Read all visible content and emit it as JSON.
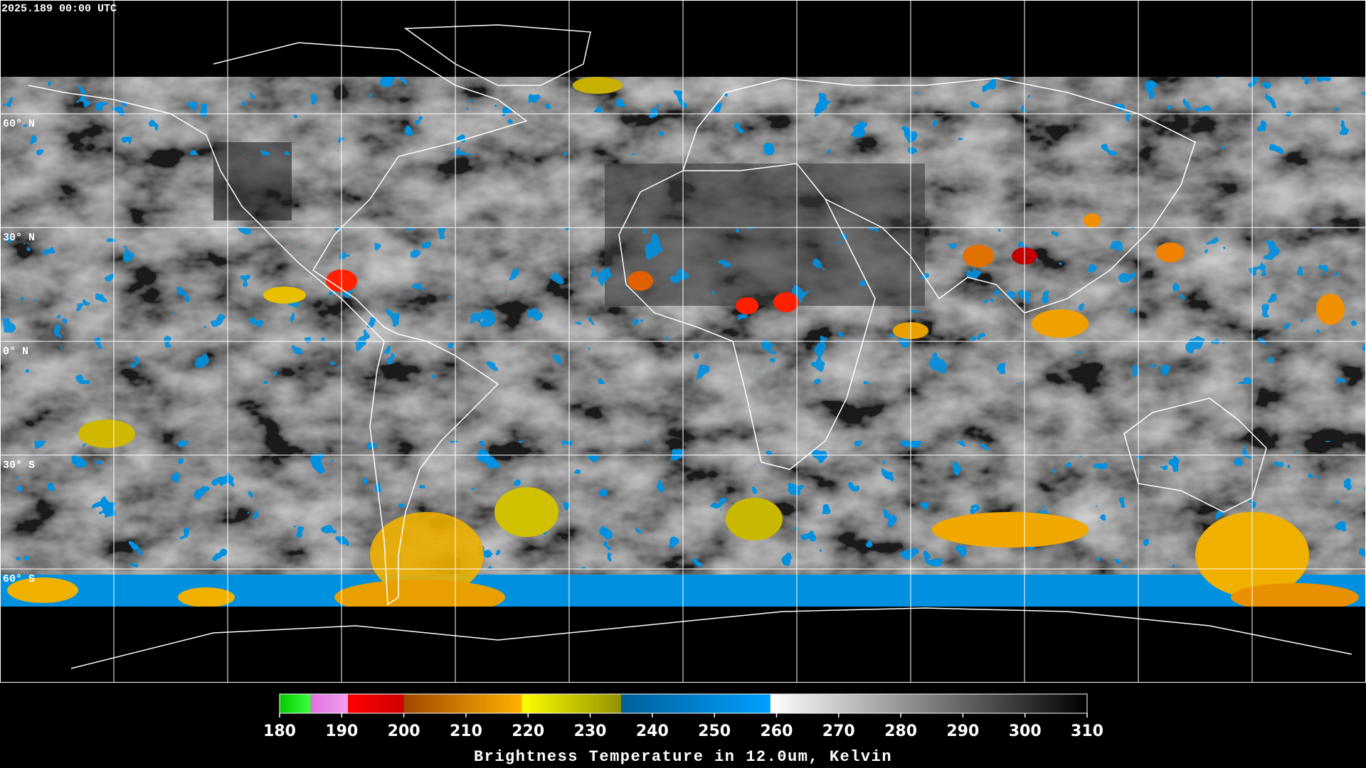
{
  "header": {
    "title": "2025.189 00:00 UTC"
  },
  "map": {
    "lat_labels": [
      {
        "value": 60,
        "label": "60° N"
      },
      {
        "value": 30,
        "label": "30° N"
      },
      {
        "value": 0,
        "label": "0° N"
      },
      {
        "value": -30,
        "label": "30° S"
      },
      {
        "value": -60,
        "label": "60° S"
      }
    ]
  },
  "colorbar": {
    "range": [
      180,
      310
    ],
    "ticks": [
      180,
      190,
      200,
      210,
      220,
      230,
      240,
      250,
      260,
      270,
      280,
      290,
      300,
      310
    ],
    "label": "Brightness Temperature in 12.0um, Kelvin",
    "segments": [
      {
        "from": 180,
        "to": 185,
        "colors": [
          "#00c800",
          "#40ff40"
        ]
      },
      {
        "from": 185,
        "to": 191,
        "colors": [
          "#e070e0",
          "#f0a0f0"
        ]
      },
      {
        "from": 191,
        "to": 200,
        "colors": [
          "#ff0000",
          "#d00000"
        ]
      },
      {
        "from": 200,
        "to": 219,
        "colors": [
          "#a04800",
          "#ffb000"
        ]
      },
      {
        "from": 219,
        "to": 235,
        "colors": [
          "#ffff00",
          "#909000"
        ]
      },
      {
        "from": 235,
        "to": 259,
        "colors": [
          "#00609a",
          "#00a0ff"
        ]
      },
      {
        "from": 259,
        "to": 310,
        "colors": [
          "#ffffff",
          "#000000"
        ]
      }
    ]
  }
}
